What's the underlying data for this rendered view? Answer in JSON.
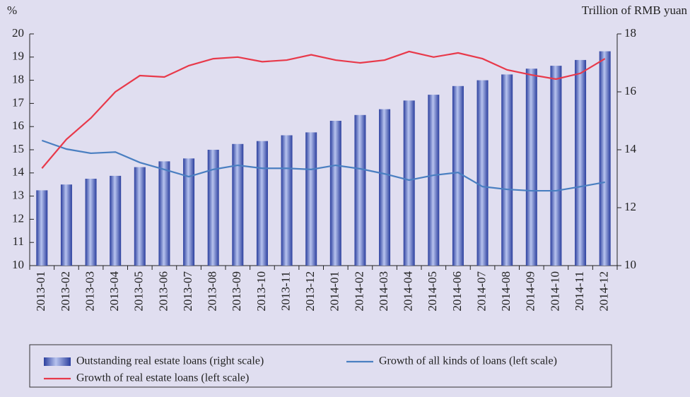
{
  "chart_data": {
    "type": "bar_line",
    "y_label": "%",
    "y2_label": "Trillion of RMB yuan",
    "categories": [
      "2013-01",
      "2013-02",
      "2013-03",
      "2013-04",
      "2013-05",
      "2013-06",
      "2013-07",
      "2013-08",
      "2013-09",
      "2013-10",
      "2013-11",
      "2013-12",
      "2014-01",
      "2014-02",
      "2014-03",
      "2014-04",
      "2014-05",
      "2014-06",
      "2014-07",
      "2014-08",
      "2014-09",
      "2014-10",
      "2014-11",
      "2014-12"
    ],
    "series": [
      {
        "name": "Outstanding real estate loans (right scale)",
        "type": "bar",
        "axis": "y2",
        "color": "#5b6fc4",
        "values": [
          12.6,
          12.8,
          13.0,
          13.1,
          13.4,
          13.6,
          13.7,
          14.0,
          14.2,
          14.3,
          14.5,
          14.6,
          15.0,
          15.2,
          15.4,
          15.7,
          15.9,
          16.2,
          16.4,
          16.6,
          16.8,
          16.9,
          17.1,
          17.4
        ]
      },
      {
        "name": "Growth of all kinds of loans (left scale)",
        "type": "line",
        "axis": "y",
        "color": "#4a7fc1",
        "values": [
          15.4,
          15.03,
          14.85,
          14.9,
          14.45,
          14.15,
          13.84,
          14.15,
          14.33,
          14.2,
          14.2,
          14.15,
          14.33,
          14.18,
          13.96,
          13.69,
          13.9,
          14.02,
          13.41,
          13.29,
          13.23,
          13.23,
          13.41,
          13.6
        ]
      },
      {
        "name": "Growth of real estate loans (left scale)",
        "type": "line",
        "axis": "y",
        "color": "#e8394a",
        "values": [
          14.2,
          15.45,
          16.37,
          17.5,
          18.2,
          18.14,
          18.63,
          18.93,
          19.0,
          18.8,
          18.87,
          19.1,
          18.87,
          18.75,
          18.87,
          19.24,
          19.0,
          19.18,
          18.93,
          18.45,
          18.23,
          18.05,
          18.3,
          18.93
        ]
      }
    ],
    "ylim": [
      10,
      20
    ],
    "yticks": [
      10,
      11,
      12,
      13,
      14,
      15,
      16,
      17,
      18,
      19,
      20
    ],
    "y2lim": [
      10,
      18
    ],
    "y2ticks": [
      10,
      12,
      14,
      16,
      18
    ]
  }
}
